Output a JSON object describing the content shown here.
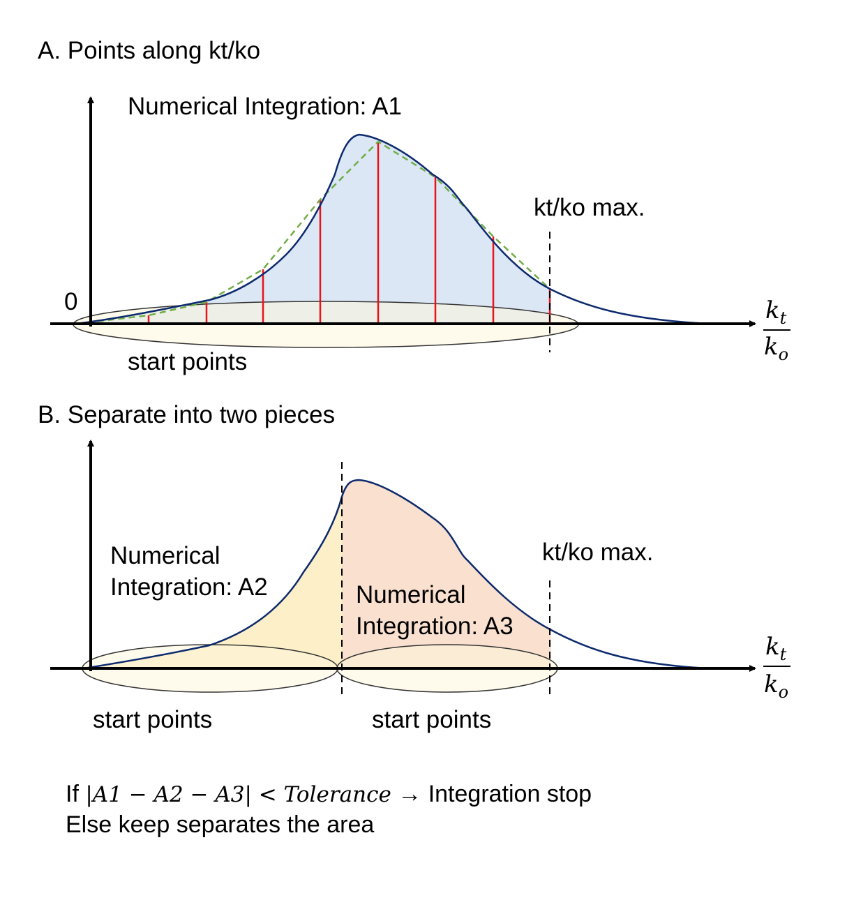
{
  "panel_a": {
    "heading": "A. Points along kt/ko",
    "integration_label": "Numerical Integration: A1",
    "max_label": "kt/ko max.",
    "zero_label": "0",
    "start_label": "start points",
    "axis_fraction": {
      "numerator": "k",
      "numerator_sub": "t",
      "denominator": "k",
      "denominator_sub": "o"
    }
  },
  "panel_b": {
    "heading": "B. Separate into two pieces",
    "left_label_line1": "Numerical",
    "left_label_line2": "Integration: A2",
    "right_label_line1": "Numerical",
    "right_label_line2": "Integration: A3",
    "max_label": "kt/ko max.",
    "start_label_left": "start points",
    "start_label_right": "start points",
    "axis_fraction": {
      "numerator": "k",
      "numerator_sub": "t",
      "denominator": "k",
      "denominator_sub": "o"
    }
  },
  "footer": {
    "if_word": "If",
    "condition": "|A1 − A2 − A3| < Tolerance",
    "arrow": "→",
    "stop_text": "Integration stop",
    "else_line": "Else keep separates the area"
  },
  "colors": {
    "curve": "#0d2a6e",
    "area_a1": "#dbe7f4",
    "area_a2": "#fdf0c8",
    "area_a3": "#f9e0cf",
    "ellipse_fill": "#fdf6dc",
    "samples": "#e8141a",
    "trapezoid": "#70ad47"
  }
}
